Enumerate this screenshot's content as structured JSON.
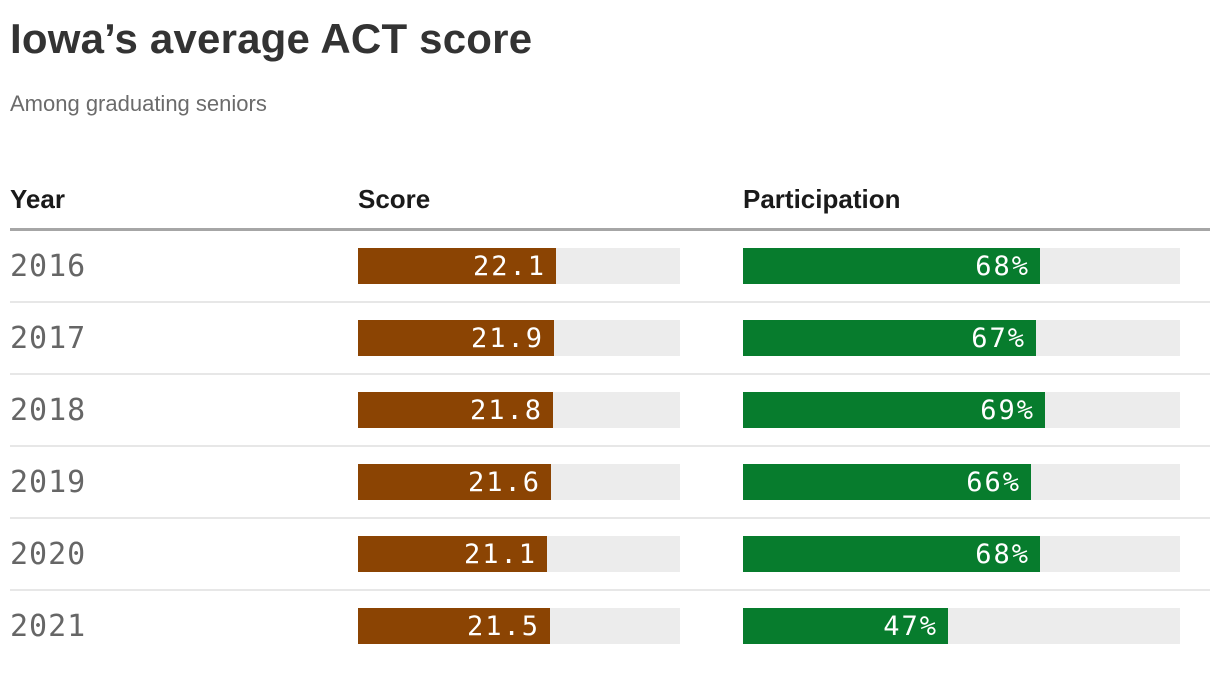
{
  "header": {
    "title": "Iowa’s average ACT score",
    "subtitle": "Among graduating seniors"
  },
  "table": {
    "columns": [
      "Year",
      "Score",
      "Participation"
    ]
  },
  "rows": [
    {
      "year": "2016",
      "score_label": "22.1",
      "participation_label": "68%"
    },
    {
      "year": "2017",
      "score_label": "21.9",
      "participation_label": "67%"
    },
    {
      "year": "2018",
      "score_label": "21.8",
      "participation_label": "69%"
    },
    {
      "year": "2019",
      "score_label": "21.6",
      "participation_label": "66%"
    },
    {
      "year": "2020",
      "score_label": "21.1",
      "participation_label": "68%"
    },
    {
      "year": "2021",
      "score_label": "21.5",
      "participation_label": "47%"
    }
  ],
  "chart_data": {
    "type": "bar",
    "orientation": "horizontal",
    "title": "Iowa’s average ACT score",
    "subtitle": "Among graduating seniors",
    "categories": [
      "2016",
      "2017",
      "2018",
      "2019",
      "2020",
      "2021"
    ],
    "series": [
      {
        "name": "Score",
        "values": [
          22.1,
          21.9,
          21.8,
          21.6,
          21.1,
          21.5
        ],
        "range": [
          0,
          36
        ],
        "color": "#8B4403"
      },
      {
        "name": "Participation",
        "values": [
          68,
          67,
          69,
          66,
          68,
          47
        ],
        "range": [
          0,
          100
        ],
        "color": "#077C2D",
        "suffix": "%"
      }
    ],
    "grid": false,
    "legend": false,
    "track_color": "#ECECEC",
    "label_position": "inside-end"
  }
}
